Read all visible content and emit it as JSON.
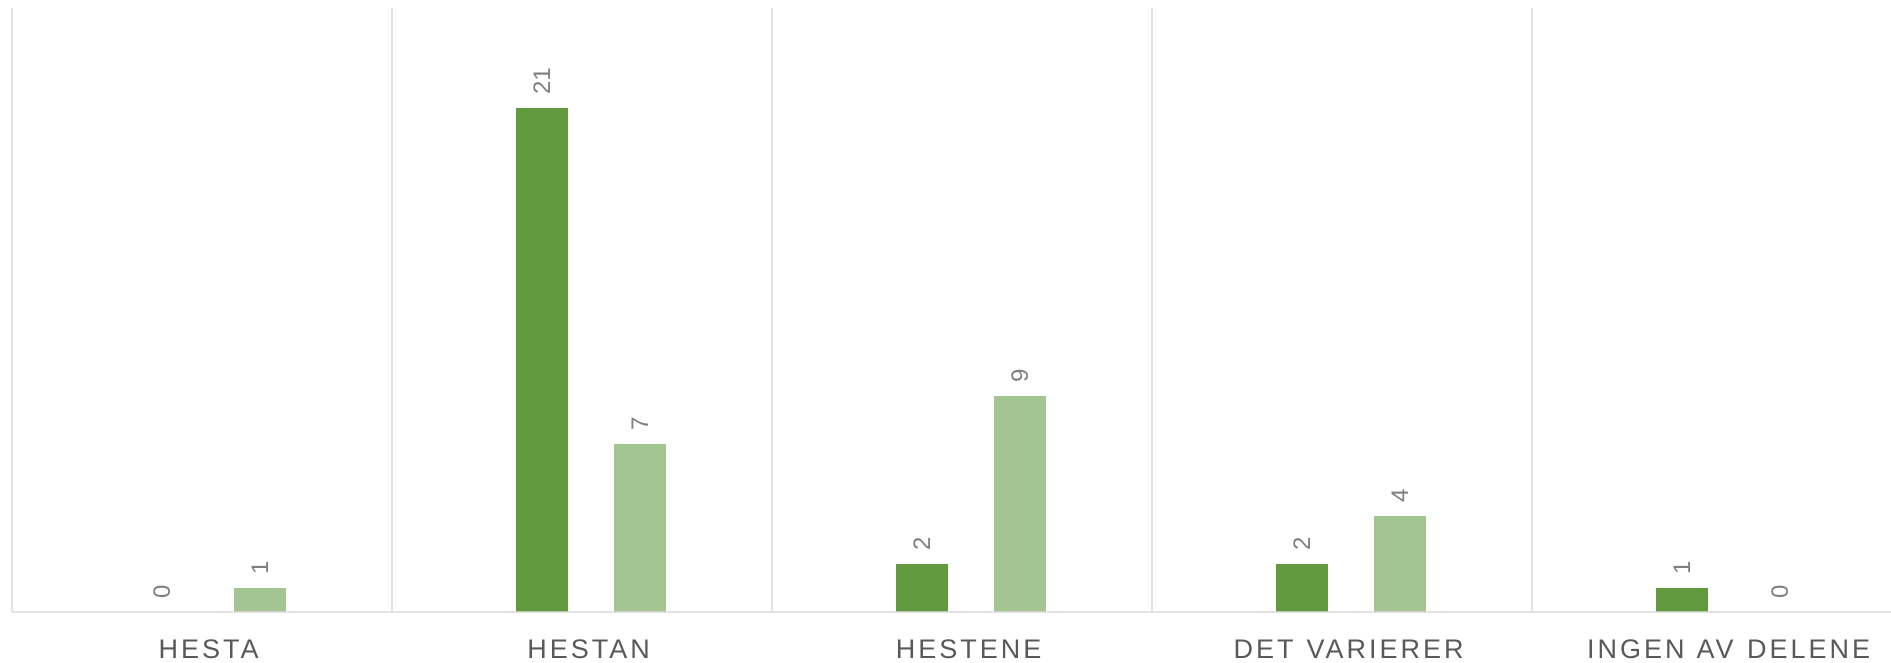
{
  "chart_data": {
    "type": "bar",
    "categories": [
      "HESTA",
      "HESTAN",
      "HESTENE",
      "DET VARIERER",
      "INGEN AV DELENE"
    ],
    "series": [
      {
        "values": [
          0,
          21,
          2,
          2,
          1
        ],
        "color": "#629a3f"
      },
      {
        "values": [
          1,
          7,
          9,
          4,
          0
        ],
        "color": "#a2c591"
      }
    ],
    "ylim": [
      0,
      24
    ],
    "grid": "vertical category separators",
    "legend": "none",
    "data_labels": "rotated -90"
  },
  "colors": {
    "grid": "#d9d9d9",
    "axis": "#d9d9d9",
    "category_text": "#595959",
    "label_text": "#7f7f7f"
  }
}
